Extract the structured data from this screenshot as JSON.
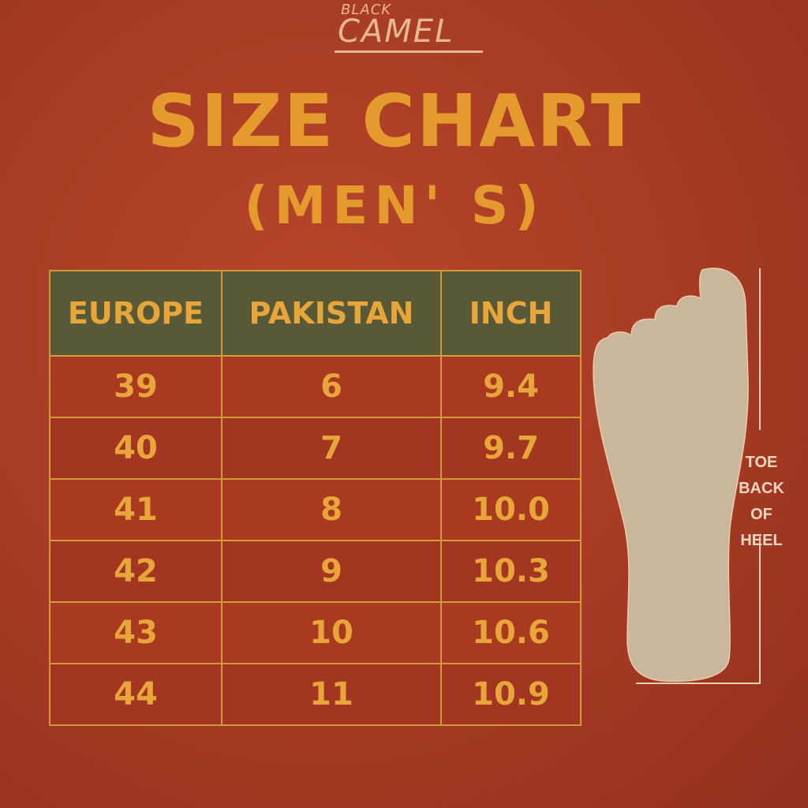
{
  "logo": {
    "top": "BLACK",
    "main": "CAMEL"
  },
  "title": "SIZE CHART",
  "subtitle": "(MEN' S)",
  "table": {
    "headers": [
      "EUROPE",
      "PAKISTAN",
      "INCH"
    ],
    "rows": [
      [
        "39",
        "6",
        "9.4"
      ],
      [
        "40",
        "7",
        "9.7"
      ],
      [
        "41",
        "8",
        "10.0"
      ],
      [
        "42",
        "9",
        "10.3"
      ],
      [
        "43",
        "10",
        "10.6"
      ],
      [
        "44",
        "11",
        "10.9"
      ]
    ]
  },
  "measure_label": [
    "TOE",
    "BACK",
    "OF",
    "HEEL"
  ],
  "colors": {
    "background": "#a63b24",
    "accent": "#e49a2c",
    "header_bg": "#585a37",
    "foot": "#c9b79c"
  }
}
